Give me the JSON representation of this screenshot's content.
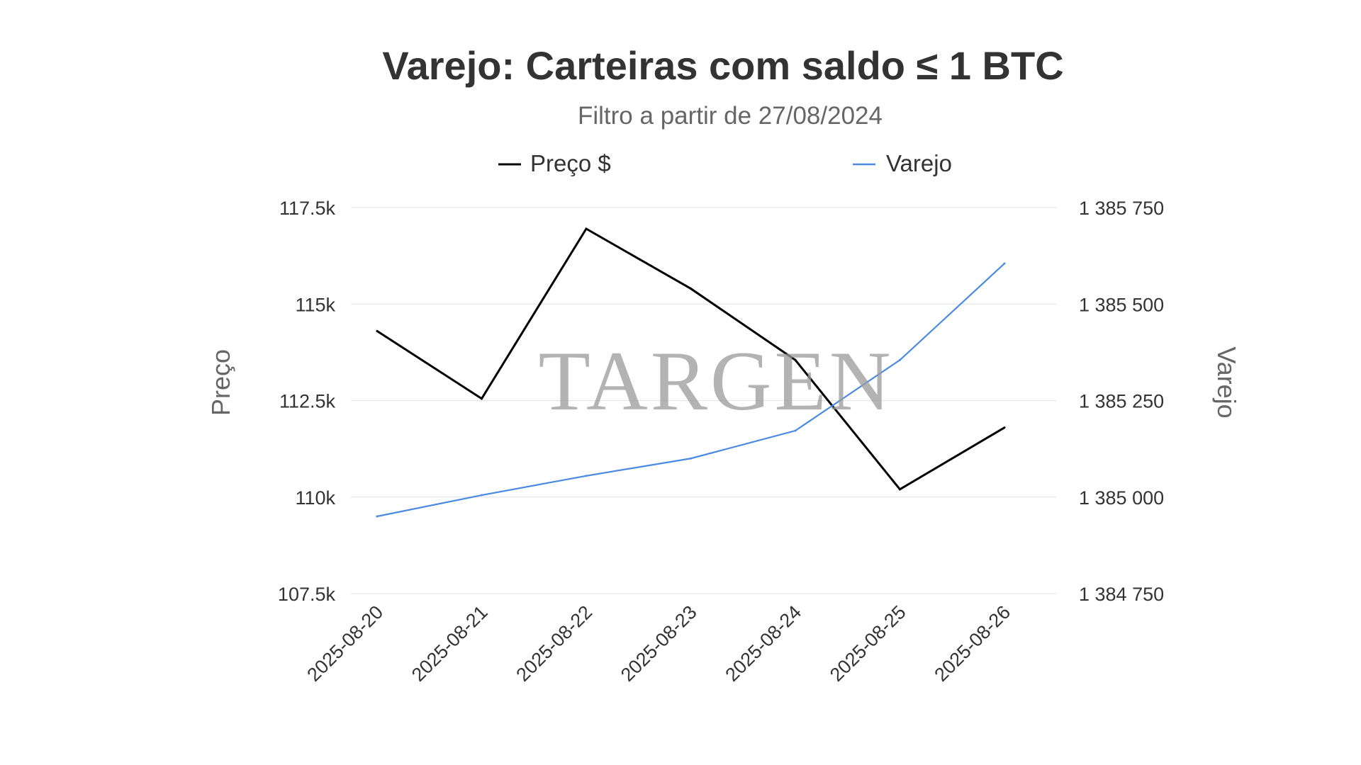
{
  "watermark": "TARGEN",
  "chart_data": {
    "type": "line",
    "title": "Varejo: Carteiras com saldo ≤ 1 BTC",
    "subtitle": "Filtro a partir de 27/08/2024",
    "x": [
      "2025-08-20",
      "2025-08-21",
      "2025-08-22",
      "2025-08-23",
      "2025-08-24",
      "2025-08-25",
      "2025-08-26"
    ],
    "series": [
      {
        "name": "Preço $",
        "axis": "left",
        "color": "#000000",
        "values": [
          114300,
          112550,
          116950,
          115400,
          113550,
          110200,
          111800
        ]
      },
      {
        "name": "Varejo",
        "axis": "right",
        "color": "#4a8ae0",
        "values": [
          1384950,
          1385005,
          1385055,
          1385100,
          1385172,
          1385355,
          1385605
        ]
      }
    ],
    "y_left": {
      "label": "Preço",
      "ylim": [
        107500,
        117500
      ],
      "ticks": [
        107500,
        110000,
        112500,
        115000,
        117500
      ],
      "tick_labels": [
        "107.5k",
        "110k",
        "112.5k",
        "115k",
        "117.5k"
      ]
    },
    "y_right": {
      "label": "Varejo",
      "ylim": [
        1384750,
        1385750
      ],
      "ticks": [
        1384750,
        1385000,
        1385250,
        1385500,
        1385750
      ],
      "tick_labels": [
        "1 384 750",
        "1 385 000",
        "1 385 250",
        "1 385 500",
        "1 385 750"
      ]
    },
    "grid": true,
    "legend_position": "top"
  }
}
